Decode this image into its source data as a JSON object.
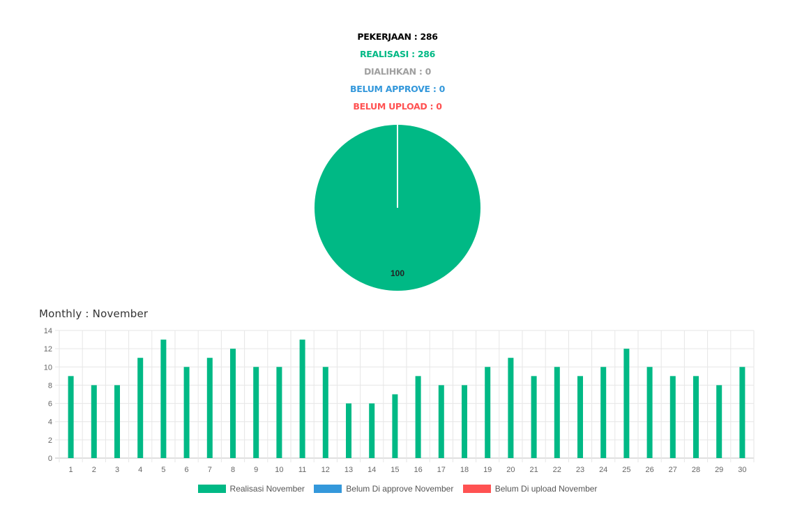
{
  "stats": {
    "pekerjaan": "PEKERJAAN : 286",
    "realisasi": "REALISASI : 286",
    "dialihkan": "DIALIHKAN : 0",
    "belum_approve": "BELUM APPROVE : 0",
    "belum_upload": "BELUM UPLOAD : 0"
  },
  "colors": {
    "pekerjaan": "#000000",
    "realisasi": "#00b985",
    "dialihkan": "#a0a0a0",
    "belum_approve": "#3498db",
    "belum_upload": "#ff5252",
    "grid": "#e6e6e6",
    "axis_text": "#666666"
  },
  "monthly_title": "Monthly : November",
  "chart_data": [
    {
      "type": "pie",
      "slices": [
        {
          "label": "Realisasi",
          "value": 100,
          "color": "#00b985"
        },
        {
          "label": "Dialihkan",
          "value": 0,
          "color": "#a0a0a0"
        }
      ],
      "data_labels": [
        "100"
      ]
    },
    {
      "type": "bar",
      "title": "",
      "categories": [
        "1",
        "2",
        "3",
        "4",
        "5",
        "6",
        "7",
        "8",
        "9",
        "10",
        "11",
        "12",
        "13",
        "14",
        "15",
        "16",
        "17",
        "18",
        "19",
        "20",
        "21",
        "22",
        "23",
        "24",
        "25",
        "26",
        "27",
        "28",
        "29",
        "30"
      ],
      "series": [
        {
          "name": "Realisasi November",
          "color": "#00b985",
          "values": [
            9,
            8,
            8,
            11,
            13,
            10,
            11,
            12,
            10,
            10,
            13,
            10,
            6,
            6,
            7,
            9,
            8,
            8,
            10,
            11,
            9,
            10,
            9,
            10,
            12,
            10,
            9,
            9,
            8,
            10
          ]
        },
        {
          "name": "Belum Di approve November",
          "color": "#3498db",
          "values": [
            0,
            0,
            0,
            0,
            0,
            0,
            0,
            0,
            0,
            0,
            0,
            0,
            0,
            0,
            0,
            0,
            0,
            0,
            0,
            0,
            0,
            0,
            0,
            0,
            0,
            0,
            0,
            0,
            0,
            0
          ]
        },
        {
          "name": "Belum Di upload November",
          "color": "#ff5252",
          "values": [
            0,
            0,
            0,
            0,
            0,
            0,
            0,
            0,
            0,
            0,
            0,
            0,
            0,
            0,
            0,
            0,
            0,
            0,
            0,
            0,
            0,
            0,
            0,
            0,
            0,
            0,
            0,
            0,
            0,
            0
          ]
        }
      ],
      "y_ticks": [
        "0",
        "2",
        "4",
        "6",
        "8",
        "10",
        "12",
        "14"
      ],
      "ylim": [
        0,
        14
      ],
      "grid": true,
      "legend_position": "bottom"
    }
  ]
}
